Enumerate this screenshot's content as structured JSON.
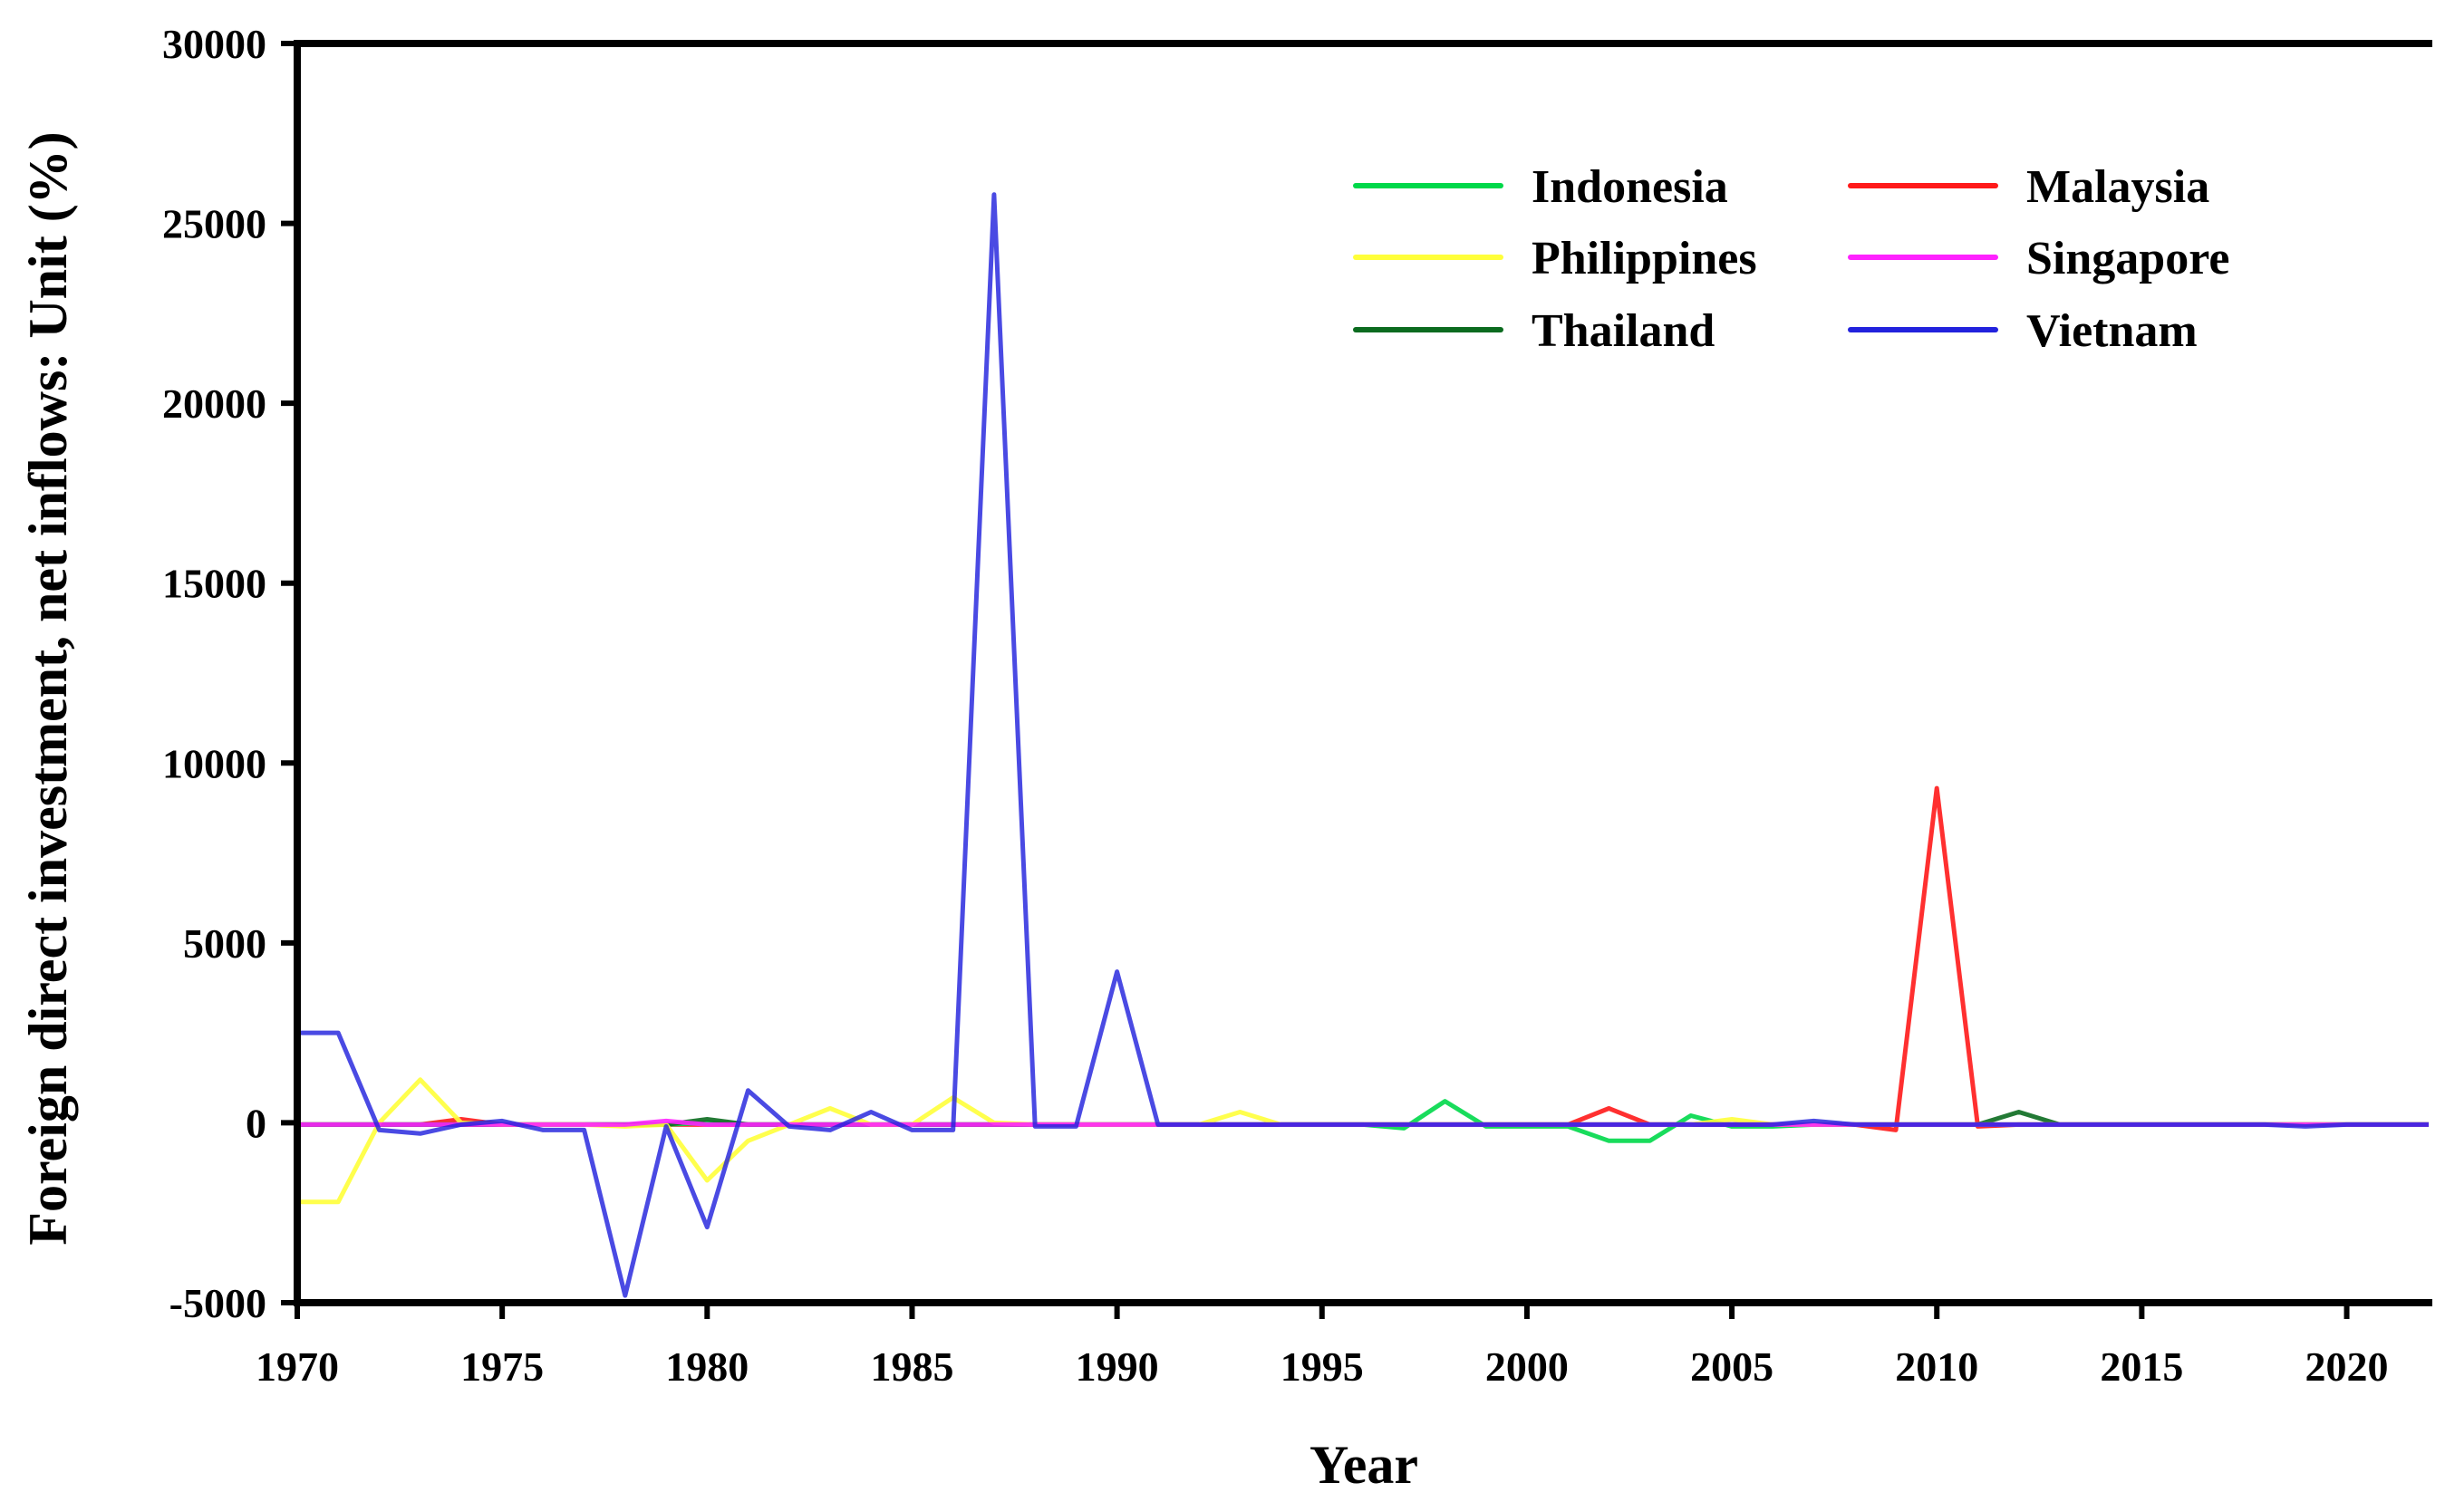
{
  "chart_data": {
    "type": "line",
    "title": "",
    "xlabel": "Year",
    "ylabel": "Foreign direct investment, net inflows: Unit (%)",
    "xlim": [
      1970,
      2022
    ],
    "ylim": [
      -5000,
      30000
    ],
    "xticks": [
      1970,
      1975,
      1980,
      1985,
      1990,
      1995,
      2000,
      2005,
      2010,
      2015,
      2020
    ],
    "yticks": [
      -5000,
      0,
      5000,
      10000,
      15000,
      20000,
      25000,
      30000
    ],
    "grid": false,
    "legend_position": "top-right",
    "series": [
      {
        "name": "Indonesia",
        "color": "#00d84a",
        "x": [
          1970,
          1971,
          1972,
          1973,
          1974,
          1975,
          1976,
          1977,
          1978,
          1979,
          1980,
          1981,
          1982,
          1983,
          1984,
          1985,
          1986,
          1987,
          1988,
          1989,
          1990,
          1991,
          1992,
          1993,
          1994,
          1995,
          1996,
          1997,
          1998,
          1999,
          2000,
          2001,
          2002,
          2003,
          2004,
          2005,
          2006,
          2007,
          2008,
          2009,
          2010,
          2011,
          2012,
          2013,
          2014,
          2015,
          2016,
          2017,
          2018,
          2019,
          2020,
          2021,
          2022
        ],
        "y": [
          -50,
          -50,
          -50,
          -50,
          -50,
          -50,
          -50,
          -50,
          -50,
          -50,
          0,
          -50,
          -50,
          -50,
          -50,
          -50,
          -50,
          -50,
          -50,
          -50,
          -50,
          -50,
          -50,
          -50,
          -50,
          -50,
          -50,
          -150,
          600,
          -100,
          -100,
          -100,
          -500,
          -500,
          200,
          -100,
          -100,
          -50,
          -50,
          -50,
          -50,
          -50,
          -50,
          -50,
          -50,
          -50,
          -50,
          -50,
          -50,
          -50,
          -50,
          -50,
          -50
        ]
      },
      {
        "name": "Malaysia",
        "color": "#ff1a1a",
        "x": [
          1970,
          1971,
          1972,
          1973,
          1974,
          1975,
          1976,
          1977,
          1978,
          1979,
          1980,
          1981,
          1982,
          1983,
          1984,
          1985,
          1986,
          1987,
          1988,
          1989,
          1990,
          1991,
          1992,
          1993,
          1994,
          1995,
          1996,
          1997,
          1998,
          1999,
          2000,
          2001,
          2002,
          2003,
          2004,
          2005,
          2006,
          2007,
          2008,
          2009,
          2010,
          2011,
          2012,
          2013,
          2014,
          2015,
          2016,
          2017,
          2018,
          2019,
          2020,
          2021,
          2022
        ],
        "y": [
          -50,
          -50,
          -50,
          -50,
          100,
          -50,
          -50,
          -50,
          -50,
          -50,
          -50,
          -50,
          -50,
          -50,
          -50,
          -50,
          -50,
          -50,
          -50,
          -50,
          -50,
          -50,
          -50,
          -50,
          -50,
          -50,
          -50,
          -50,
          -50,
          -50,
          -50,
          -50,
          400,
          -50,
          -50,
          -50,
          -50,
          -50,
          -50,
          -200,
          9300,
          -100,
          -50,
          -50,
          -50,
          -50,
          -50,
          -50,
          -50,
          -50,
          -50,
          -50,
          -50
        ]
      },
      {
        "name": "Philippines",
        "color": "#ffff3a",
        "x": [
          1970,
          1971,
          1972,
          1973,
          1974,
          1975,
          1976,
          1977,
          1978,
          1979,
          1980,
          1981,
          1982,
          1983,
          1984,
          1985,
          1986,
          1987,
          1988,
          1989,
          1990,
          1991,
          1992,
          1993,
          1994,
          1995,
          1996,
          1997,
          1998,
          1999,
          2000,
          2001,
          2002,
          2003,
          2004,
          2005,
          2006,
          2007,
          2008,
          2009,
          2010,
          2011,
          2012,
          2013,
          2014,
          2015,
          2016,
          2017,
          2018,
          2019,
          2020,
          2021,
          2022
        ],
        "y": [
          -2200,
          -2200,
          0,
          1200,
          0,
          -50,
          -50,
          -50,
          -100,
          -50,
          -1600,
          -500,
          -50,
          400,
          -50,
          -50,
          700,
          0,
          -50,
          -50,
          -50,
          -50,
          -50,
          300,
          -50,
          -50,
          -50,
          -50,
          -50,
          -50,
          -50,
          -50,
          -50,
          -50,
          -50,
          100,
          -50,
          -50,
          -50,
          -50,
          -50,
          -50,
          -50,
          -50,
          -50,
          -50,
          -50,
          -50,
          -50,
          -50,
          -50,
          -50,
          -50
        ]
      },
      {
        "name": "Singapore",
        "color": "#ff22ff",
        "x": [
          1970,
          1971,
          1972,
          1973,
          1974,
          1975,
          1976,
          1977,
          1978,
          1979,
          1980,
          1981,
          1982,
          1983,
          1984,
          1985,
          1986,
          1987,
          1988,
          1989,
          1990,
          1991,
          1992,
          1993,
          1994,
          1995,
          1996,
          1997,
          1998,
          1999,
          2000,
          2001,
          2002,
          2003,
          2004,
          2005,
          2006,
          2007,
          2008,
          2009,
          2010,
          2011,
          2012,
          2013,
          2014,
          2015,
          2016,
          2017,
          2018,
          2019,
          2020,
          2021,
          2022
        ],
        "y": [
          -50,
          -50,
          -50,
          -50,
          -50,
          -50,
          -50,
          -50,
          -50,
          50,
          -50,
          -50,
          -50,
          -50,
          -50,
          -50,
          -50,
          -50,
          -50,
          -50,
          -50,
          -50,
          -50,
          -50,
          -50,
          -50,
          -50,
          -50,
          -50,
          -50,
          -50,
          -50,
          -50,
          -50,
          -50,
          -50,
          -50,
          -50,
          -50,
          -50,
          -50,
          -50,
          -50,
          -50,
          -50,
          -50,
          -50,
          -50,
          -50,
          -50,
          -50,
          -50,
          -50
        ]
      },
      {
        "name": "Thailand",
        "color": "#0b6b1f",
        "x": [
          1970,
          1971,
          1972,
          1973,
          1974,
          1975,
          1976,
          1977,
          1978,
          1979,
          1980,
          1981,
          1982,
          1983,
          1984,
          1985,
          1986,
          1987,
          1988,
          1989,
          1990,
          1991,
          1992,
          1993,
          1994,
          1995,
          1996,
          1997,
          1998,
          1999,
          2000,
          2001,
          2002,
          2003,
          2004,
          2005,
          2006,
          2007,
          2008,
          2009,
          2010,
          2011,
          2012,
          2013,
          2014,
          2015,
          2016,
          2017,
          2018,
          2019,
          2020,
          2021,
          2022
        ],
        "y": [
          -50,
          -50,
          -50,
          -50,
          -50,
          -50,
          -50,
          -50,
          -50,
          -50,
          100,
          -50,
          -50,
          -50,
          -50,
          -50,
          -50,
          -50,
          -50,
          -50,
          -50,
          -50,
          -50,
          -50,
          -50,
          -50,
          -50,
          -50,
          -50,
          -50,
          -50,
          -50,
          -50,
          -50,
          -50,
          -50,
          -50,
          -50,
          -50,
          -50,
          -50,
          -50,
          300,
          -50,
          -50,
          -50,
          -50,
          -50,
          -50,
          -50,
          -50,
          -50,
          -50
        ]
      },
      {
        "name": "Vietnam",
        "color": "#2222dd",
        "x": [
          1970,
          1971,
          1972,
          1973,
          1974,
          1975,
          1976,
          1977,
          1978,
          1979,
          1980,
          1981,
          1982,
          1983,
          1984,
          1985,
          1986,
          1987,
          1988,
          1989,
          1990,
          1991,
          1992,
          1993,
          1994,
          1995,
          1996,
          1997,
          1998,
          1999,
          2000,
          2001,
          2002,
          2003,
          2004,
          2005,
          2006,
          2007,
          2008,
          2009,
          2010,
          2011,
          2012,
          2013,
          2014,
          2015,
          2016,
          2017,
          2018,
          2019,
          2020,
          2021,
          2022
        ],
        "y": [
          2500,
          2500,
          -200,
          -300,
          -50,
          50,
          -200,
          -200,
          -4800,
          -100,
          -2900,
          900,
          -100,
          -200,
          300,
          -200,
          -200,
          25800,
          -100,
          -100,
          4200,
          -50,
          -50,
          -50,
          -50,
          -50,
          -50,
          -50,
          -50,
          -50,
          -50,
          -50,
          -50,
          -50,
          -50,
          -50,
          -50,
          50,
          -50,
          -50,
          -50,
          -50,
          -50,
          -50,
          -50,
          -50,
          -50,
          -50,
          -50,
          -100,
          -50,
          -50,
          -50
        ]
      }
    ]
  }
}
